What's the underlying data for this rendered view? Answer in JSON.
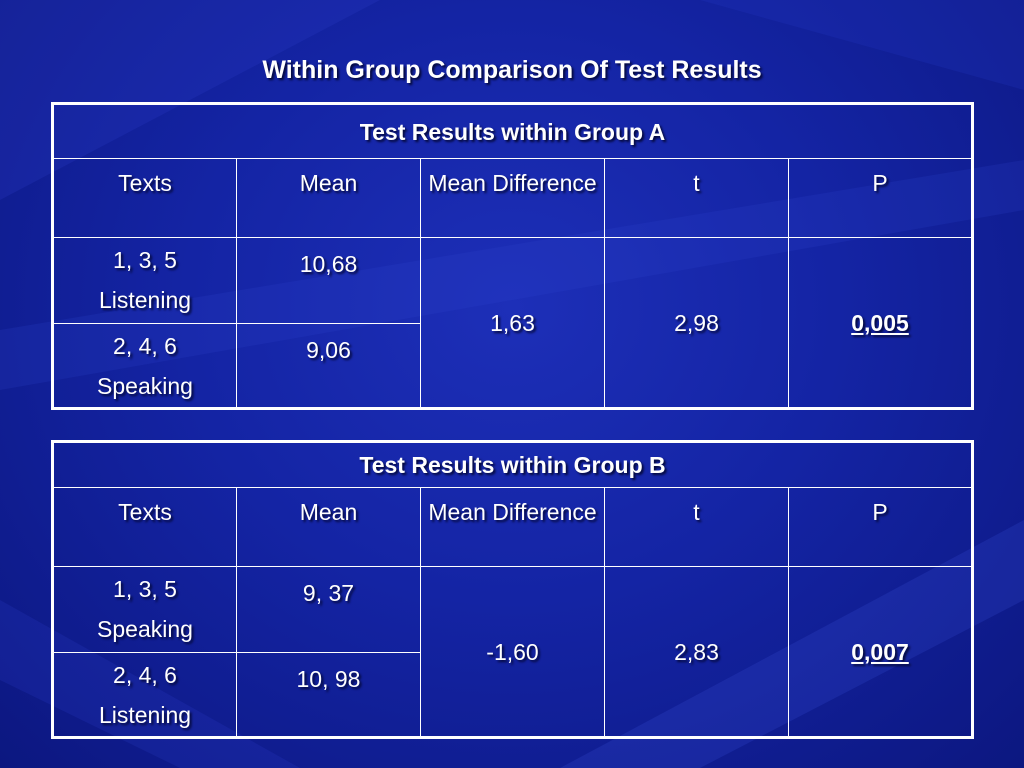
{
  "slide": {
    "title": "Within Group Comparison Of Test Results"
  },
  "colors": {
    "background": "#1424a4",
    "text": "#ffffff",
    "border": "#ffffff"
  },
  "tables": [
    {
      "heading": "Test Results within Group A",
      "columns": [
        "Texts",
        "Mean",
        "Mean Difference",
        "t",
        "P"
      ],
      "rows": [
        {
          "texts_line1": "1, 3, 5",
          "texts_line2": "Listening",
          "mean": "10,68"
        },
        {
          "texts_line1": "2, 4, 6",
          "texts_line2": "Speaking",
          "mean": "9,06"
        }
      ],
      "mean_difference": "1,63",
      "t": "2,98",
      "p": "0,005"
    },
    {
      "heading": "Test Results within Group B",
      "columns": [
        "Texts",
        "Mean",
        "Mean Difference",
        "t",
        "P"
      ],
      "rows": [
        {
          "texts_line1": "1, 3, 5",
          "texts_line2": "Speaking",
          "mean": "9, 37"
        },
        {
          "texts_line1": "2, 4, 6",
          "texts_line2": "Listening",
          "mean": "10, 98"
        }
      ],
      "mean_difference": "-1,60",
      "t": "2,83",
      "p": "0,007"
    }
  ]
}
